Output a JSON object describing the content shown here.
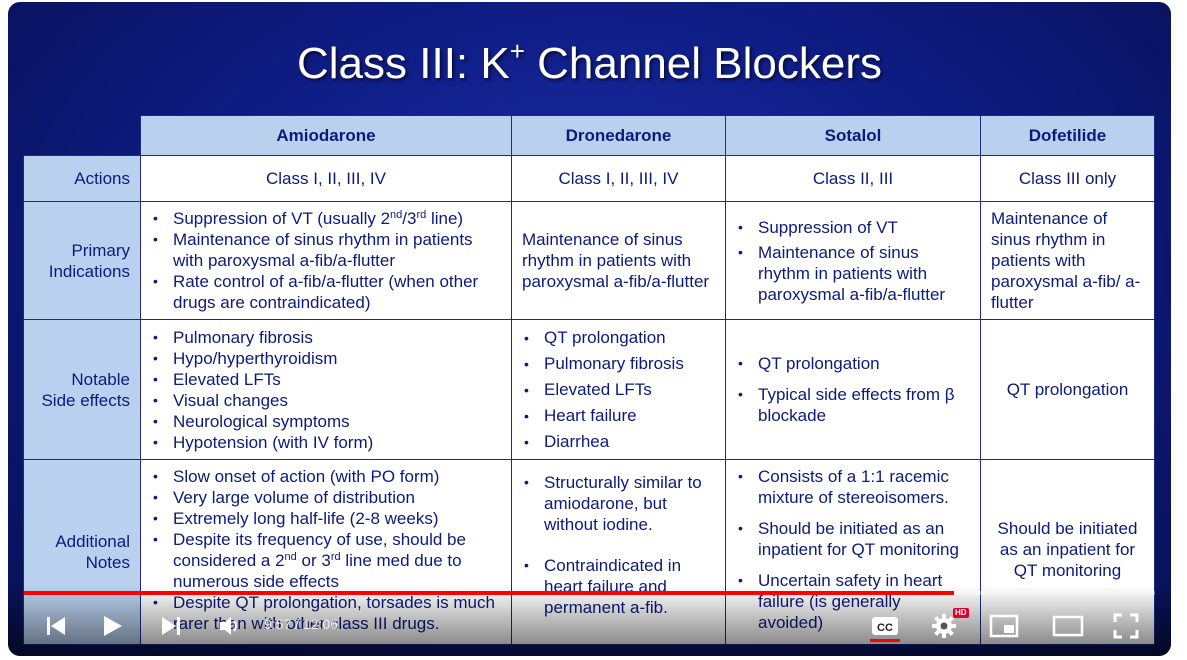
{
  "slide": {
    "title_main": "Class III: K",
    "title_sup": "+",
    "title_rest": " Channel Blockers"
  },
  "table": {
    "columns": [
      "Amiodarone",
      "Dronedarone",
      "Sotalol",
      "Dofetilide"
    ],
    "row_labels": {
      "actions": "Actions",
      "indications_1": "Primary",
      "indications_2": "Indications",
      "side_1": "Notable",
      "side_2": "Side effects",
      "notes_1": "Additional",
      "notes_2": "Notes"
    },
    "actions": [
      "Class I, II, III, IV",
      "Class I, II, III, IV",
      "Class II, III",
      "Class III only"
    ],
    "indications": {
      "amiodarone": {
        "vt_a": "Suppression of VT (usually 2",
        "vt_sup1": "nd",
        "vt_b": "/3",
        "vt_sup2": "rd",
        "vt_c": " line)",
        "item2": "Maintenance of sinus rhythm in patients with paroxysmal a-fib/a-flutter",
        "item3": "Rate control of a-fib/a-flutter (when other drugs are contraindicated)"
      },
      "dronedarone": "Maintenance of sinus rhythm in patients with paroxysmal a-fib/a-flutter",
      "sotalol": [
        "Suppression of VT",
        "Maintenance of sinus rhythm in patients with paroxysmal a-fib/a-flutter"
      ],
      "dofetilide": "Maintenance of sinus rhythm in patients with paroxysmal a-fib/ a-flutter"
    },
    "side_effects": {
      "amiodarone": [
        "Pulmonary fibrosis",
        "Hypo/hyperthyroidism",
        "Elevated LFTs",
        "Visual changes",
        "Neurological symptoms",
        "Hypotension (with IV form)"
      ],
      "dronedarone": [
        "QT prolongation",
        "Pulmonary fibrosis",
        "Elevated LFTs",
        "Heart failure",
        "Diarrhea"
      ],
      "sotalol": [
        "QT prolongation",
        "Typical side effects from β blockade"
      ],
      "dofetilide": "QT prolongation"
    },
    "notes": {
      "amiodarone": {
        "item1": "Slow onset of action (with PO form)",
        "item2": "Very large volume of distribution",
        "item3": "Extremely long half-life (2-8 weeks)",
        "item4_a": "Despite its frequency of use, should be considered a 2",
        "item4_sup1": "nd",
        "item4_b": " or 3",
        "item4_sup2": "rd",
        "item4_c": " line med due to numerous side effects",
        "item5": "Despite QT prolongation, torsades is much rarer than with other class III drugs."
      },
      "dronedarone": [
        "Structurally similar to amiodarone, but without iodine.",
        "Contraindicated in heart failure and permanent a-fib."
      ],
      "sotalol": [
        "Consists of a 1:1 racemic mixture of stereoisomers.",
        "Should be initiated as an inpatient for QT monitoring",
        "Uncertain safety in heart failure (is generally avoided)"
      ],
      "dofetilide": "Should be initiated as an inpatient for QT monitoring"
    }
  },
  "player": {
    "time_display": "9:57 / 12:06",
    "progress_fraction": 0.822,
    "hd_badge": "HD",
    "accent_color": "#ff0000",
    "icons": [
      "previous-icon",
      "play-icon",
      "next-icon",
      "volume-icon",
      "captions-icon",
      "settings-icon",
      "miniplayer-icon",
      "theater-icon",
      "fullscreen-icon"
    ]
  }
}
